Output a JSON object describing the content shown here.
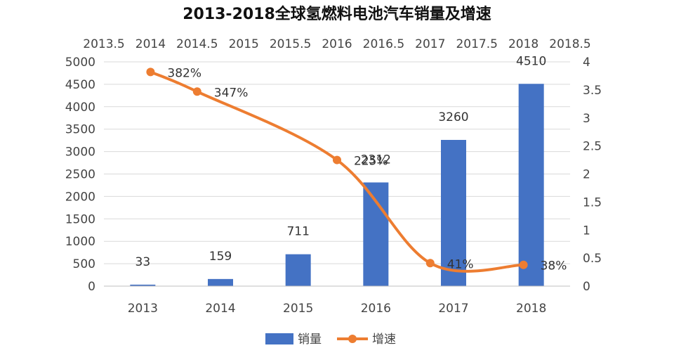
{
  "chart_data": {
    "type": "bar",
    "title": "2013-2018全球氢燃料电池汽车销量及增速",
    "categories": [
      "2013",
      "2014",
      "2015",
      "2016",
      "2017",
      "2018"
    ],
    "series": [
      {
        "name": "销量",
        "type": "bar",
        "axis": "left",
        "values": [
          33,
          159,
          711,
          2312,
          3260,
          4510
        ],
        "labels": [
          "33",
          "159",
          "711",
          "2312",
          "3260",
          "4510"
        ],
        "color": "#4472C4"
      },
      {
        "name": "增速",
        "type": "line",
        "axis": "right",
        "smooth": true,
        "values": [
          3.82,
          3.47,
          2.25,
          0.41,
          0.38
        ],
        "x": [
          2014,
          2014.5,
          2016,
          2017,
          2018
        ],
        "labels": [
          "382%",
          "347%",
          "225%",
          "41%",
          "38%"
        ],
        "color": "#ED7D31"
      }
    ],
    "y_left": {
      "ylim": [
        0,
        5000
      ],
      "ticks": [
        "0",
        "500",
        "1000",
        "1500",
        "2000",
        "2500",
        "3000",
        "3500",
        "4000",
        "4500",
        "5000"
      ]
    },
    "y_right": {
      "ylim": [
        0,
        4
      ],
      "ticks": [
        "0",
        "0.5",
        "1",
        "1.5",
        "2",
        "2.5",
        "3",
        "3.5",
        "4"
      ]
    },
    "x_top": {
      "xlim": [
        2013.5,
        2018.5
      ],
      "ticks": [
        "2013.5",
        "2014",
        "2014.5",
        "2015",
        "2015.5",
        "2016",
        "2016.5",
        "2017",
        "2017.5",
        "2018",
        "2018.5"
      ]
    },
    "grid": true,
    "legend_position": "bottom"
  }
}
